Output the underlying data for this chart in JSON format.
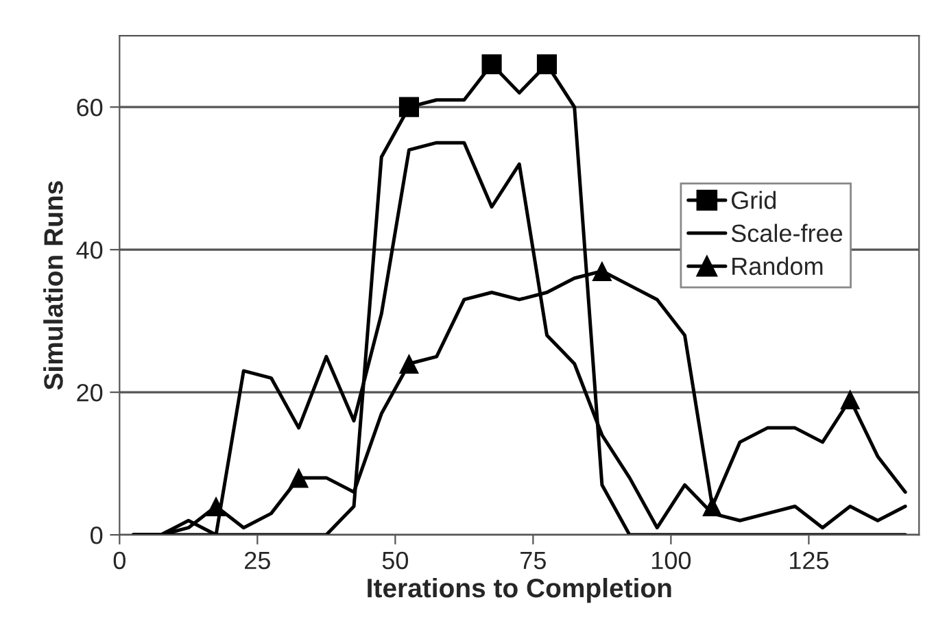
{
  "chart_data": {
    "type": "line",
    "xlabel": "Iterations to Completion",
    "ylabel": "Simulation Runs",
    "x": [
      2.5,
      7.5,
      12.5,
      17.5,
      22.5,
      27.5,
      32.5,
      37.5,
      42.5,
      47.5,
      52.5,
      57.5,
      62.5,
      67.5,
      72.5,
      77.5,
      82.5,
      87.5,
      92.5,
      97.5,
      102.5,
      107.5,
      112.5,
      117.5,
      122.5,
      127.5,
      132.5,
      137.5,
      142.5
    ],
    "series": [
      {
        "color": "#000000",
        "values": [
          0,
          0,
          0,
          0,
          0,
          0,
          0,
          0,
          4,
          53,
          60,
          61,
          61,
          66,
          62,
          66,
          60,
          7,
          0,
          0,
          0,
          0,
          0,
          0,
          0,
          0,
          0,
          0,
          0
        ]
      },
      {
        "type": "scatter",
        "name": "Grid",
        "color": "#000000",
        "marker": "square",
        "x": [
          52.5,
          67.5,
          77.5
        ],
        "values": [
          60,
          66,
          66
        ]
      },
      {
        "name": "Scale-free",
        "color": "#000000",
        "values": [
          0,
          0,
          2,
          0,
          23,
          22,
          15,
          25,
          16,
          31,
          54,
          55,
          55,
          46,
          52,
          28,
          24,
          14,
          8,
          1,
          7,
          3,
          2,
          3,
          4,
          1,
          4,
          2,
          4
        ]
      },
      {
        "color": "#000000",
        "values": [
          0,
          0,
          1,
          4,
          1,
          3,
          8,
          8,
          6,
          17,
          24,
          25,
          33,
          34,
          33,
          34,
          36,
          37,
          35,
          33,
          28,
          4,
          13,
          15,
          15,
          13,
          19,
          11,
          6
        ]
      },
      {
        "type": "scatter",
        "name": "Random",
        "color": "#000000",
        "marker": "triangle",
        "x": [
          17.5,
          32.5,
          52.5,
          87.5,
          107.5,
          132.5
        ],
        "values": [
          4,
          8,
          24,
          37,
          4,
          19
        ]
      }
    ],
    "xlim": [
      0,
      145
    ],
    "xticks": [
      0,
      25,
      50,
      75,
      100,
      125
    ],
    "ylim": [
      0,
      70
    ],
    "yticks": [
      0,
      20,
      40,
      60
    ],
    "grid": "y",
    "legend": "right",
    "line_style": "solid"
  }
}
